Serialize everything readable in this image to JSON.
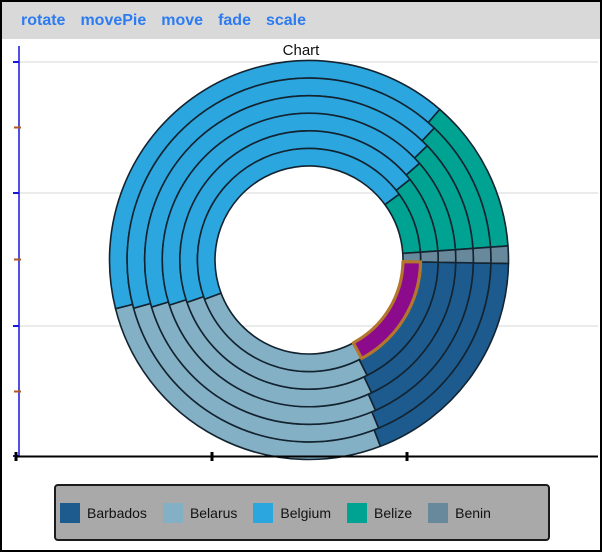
{
  "window": {
    "background": "#ffffff",
    "border_color": "#000000"
  },
  "toolbar": {
    "background": "#d9d9d9",
    "link_color": "#2d7bf0",
    "links": [
      "rotate",
      "movePie",
      "move",
      "fade",
      "scale"
    ]
  },
  "chart_data": {
    "type": "pie",
    "subtype": "multi-ring-donut",
    "title": "Chart",
    "categories": [
      "Barbados",
      "Belarus",
      "Belgium",
      "Belize",
      "Benin"
    ],
    "colors": [
      "#1d5b8f",
      "#84b0c5",
      "#2ba6df",
      "#00a291",
      "#68889c"
    ],
    "start_angle_deg": 91,
    "direction": "clockwise",
    "series": [
      {
        "ring": "outer-1",
        "values": [
          18.9,
          26.9,
          40.3,
          12.5,
          1.4
        ]
      },
      {
        "ring": "ring-2",
        "values": [
          18.5,
          27.0,
          41.4,
          11.8,
          1.4
        ]
      },
      {
        "ring": "ring-3",
        "values": [
          18.1,
          27.0,
          42.4,
          11.1,
          1.4
        ]
      },
      {
        "ring": "ring-4",
        "values": [
          17.7,
          27.0,
          43.5,
          10.3,
          1.4
        ]
      },
      {
        "ring": "ring-5",
        "values": [
          17.3,
          27.1,
          44.6,
          9.6,
          1.4
        ]
      },
      {
        "ring": "inner-6",
        "values": [
          16.9,
          27.1,
          45.7,
          8.9,
          1.4
        ]
      }
    ],
    "highlight": {
      "ring_index": 5,
      "category_index": 0,
      "fill": "#8c0a8c",
      "stroke": "#b4762b"
    },
    "slice_stroke": "#132330",
    "axes": {
      "grid_on": true,
      "grid_color": "#d7d7d7",
      "y_axis_color": "#1717da",
      "y_minor_tick_color": "#ad5b25",
      "x_axis_color": "#000000"
    },
    "legend_position": "bottom"
  },
  "legend": {
    "background": "#a9a9a9",
    "border_color": "#1b1b1b",
    "items": [
      {
        "label": "Barbados",
        "color": "#1d5b8f"
      },
      {
        "label": "Belarus",
        "color": "#84b0c5"
      },
      {
        "label": "Belgium",
        "color": "#2ba6df"
      },
      {
        "label": "Belize",
        "color": "#00a291"
      },
      {
        "label": "Benin",
        "color": "#68889c"
      }
    ]
  }
}
